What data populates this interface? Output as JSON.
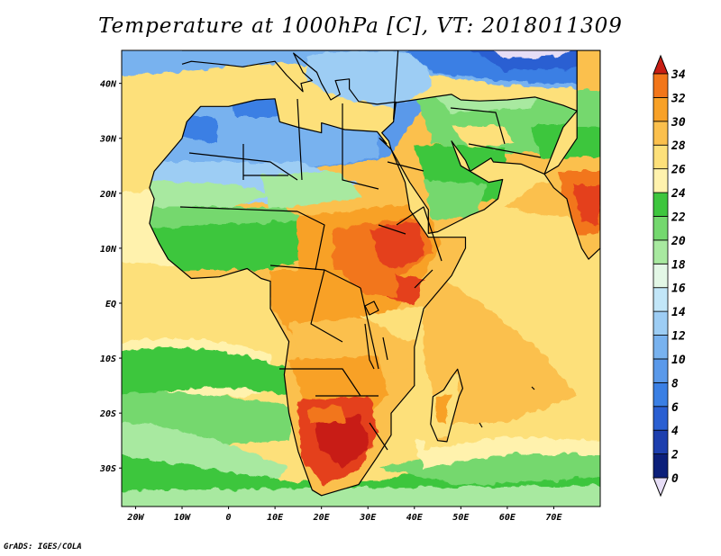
{
  "title": "Temperature at 1000hPa [C], VT: 2018011309",
  "credit": "GrADS: IGES/COLA",
  "map": {
    "lon_range": [
      -23,
      80
    ],
    "lat_range": [
      -37,
      46
    ],
    "lon_ticks": [
      {
        "value": -20,
        "label": "20W"
      },
      {
        "value": -10,
        "label": "10W"
      },
      {
        "value": 0,
        "label": "0"
      },
      {
        "value": 10,
        "label": "10E"
      },
      {
        "value": 20,
        "label": "20E"
      },
      {
        "value": 30,
        "label": "30E"
      },
      {
        "value": 40,
        "label": "40E"
      },
      {
        "value": 50,
        "label": "50E"
      },
      {
        "value": 60,
        "label": "60E"
      },
      {
        "value": 70,
        "label": "70E"
      }
    ],
    "lat_ticks": [
      {
        "value": 40,
        "label": "40N"
      },
      {
        "value": 30,
        "label": "30N"
      },
      {
        "value": 20,
        "label": "20N"
      },
      {
        "value": 10,
        "label": "10N"
      },
      {
        "value": 0,
        "label": "EQ"
      },
      {
        "value": -10,
        "label": "10S"
      },
      {
        "value": -20,
        "label": "20S"
      },
      {
        "value": -30,
        "label": "30S"
      }
    ]
  },
  "colorbar": {
    "levels": [
      0,
      2,
      4,
      6,
      8,
      10,
      12,
      14,
      16,
      18,
      20,
      22,
      24,
      26,
      28,
      30,
      32,
      34
    ],
    "colors": [
      "#0c1f7a",
      "#1d3fae",
      "#2a5fd2",
      "#3a7fe4",
      "#5a99ea",
      "#78b2ef",
      "#9dcdf4",
      "#c2e6f8",
      "#e3f7e6",
      "#a8e9a0",
      "#74d86e",
      "#3ec63e",
      "#fff2ad",
      "#fde07a",
      "#fbc04d",
      "#f8a127",
      "#f2761a",
      "#e4401b",
      "#c81e14"
    ],
    "under_color": "#e6ddf6",
    "over_color": "#c81e14"
  }
}
